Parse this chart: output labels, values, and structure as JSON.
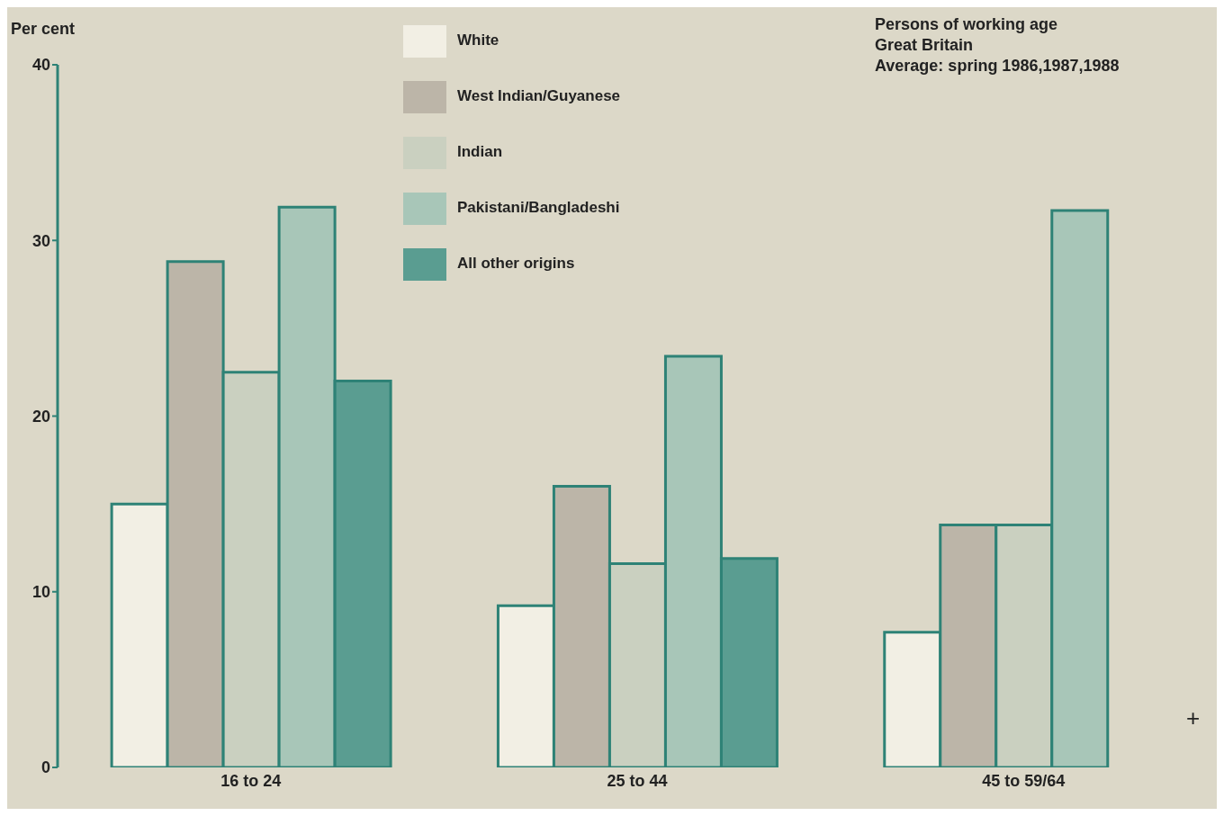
{
  "chart_data": {
    "type": "bar",
    "title": "Persons of working age",
    "subtitle": "Great Britain\nAverage: spring 1986,1987,1988",
    "ylabel": "Per cent",
    "categories": [
      "16 to 24",
      "25 to 44",
      "45 to 59/64"
    ],
    "series": [
      {
        "name": "White",
        "color": "#f2efe4",
        "values": [
          15.0,
          9.2,
          7.7
        ]
      },
      {
        "name": "West Indian/Guyanese",
        "color": "#bcb5a8",
        "values": [
          28.8,
          16.0,
          13.8
        ]
      },
      {
        "name": "Indian",
        "color": "#cad0c0",
        "values": [
          22.5,
          11.6,
          13.8
        ]
      },
      {
        "name": "Pakistani/Bangladeshi",
        "color": "#a8c6b8",
        "values": [
          31.9,
          23.4,
          31.7
        ]
      },
      {
        "name": "All other origins",
        "color": "#5a9d91",
        "values": [
          22.0,
          11.9,
          null
        ]
      }
    ],
    "ylim": [
      0,
      40
    ],
    "yticks": [
      0,
      10,
      20,
      30,
      40
    ],
    "grid": false,
    "legend": "top",
    "annotations": [
      "+"
    ]
  }
}
